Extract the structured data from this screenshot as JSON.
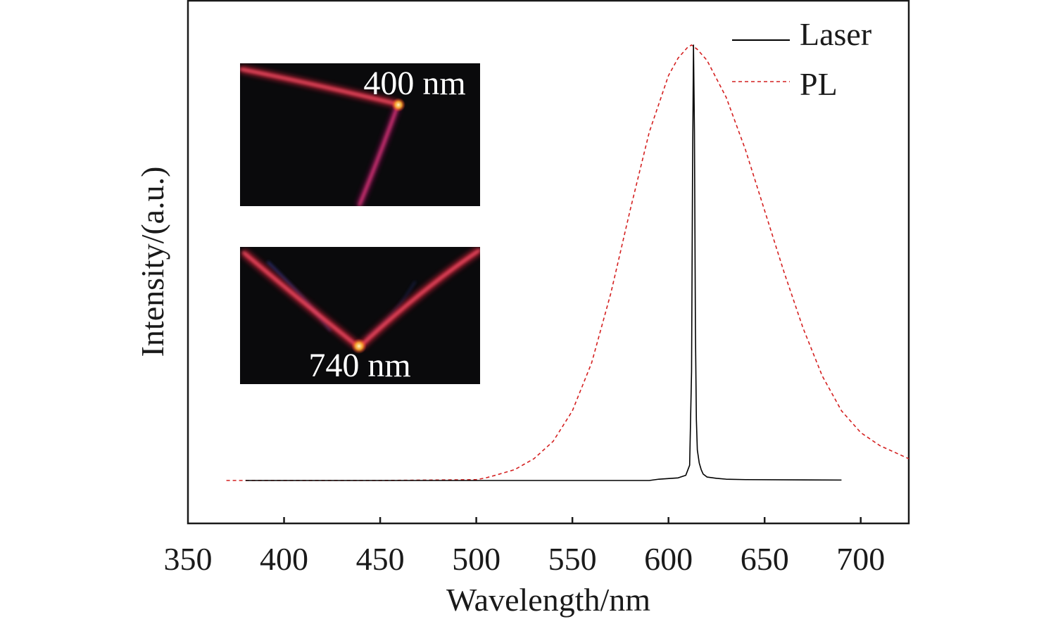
{
  "chart_data": {
    "type": "line",
    "title": "",
    "xlabel": "Wavelength/nm",
    "ylabel": "Intensity/(a.u.)",
    "xlim": [
      350,
      725
    ],
    "ylim": [
      0,
      1.1
    ],
    "xticks": [
      350,
      400,
      450,
      500,
      550,
      600,
      650,
      700
    ],
    "yticks_shown": false,
    "legend": {
      "position": "top-right",
      "entries": [
        {
          "label": "Laser",
          "style": "solid",
          "color": "#000000"
        },
        {
          "label": "PL",
          "style": "dashed",
          "color": "#d42020"
        }
      ]
    },
    "series": [
      {
        "name": "Laser",
        "color": "#000000",
        "style": "solid",
        "x": [
          380,
          500,
          590,
          595,
          605,
          609,
          611,
          612,
          612.5,
          613,
          613.5,
          614,
          614.5,
          615,
          616,
          617,
          618,
          620,
          625,
          630,
          640,
          690
        ],
        "y": [
          0,
          0,
          0,
          0.003,
          0.006,
          0.012,
          0.035,
          0.25,
          0.7,
          1.0,
          0.8,
          0.35,
          0.14,
          0.07,
          0.04,
          0.025,
          0.015,
          0.008,
          0.005,
          0.003,
          0.002,
          0.001
        ]
      },
      {
        "name": "PL",
        "color": "#d42020",
        "style": "dashed",
        "x": [
          370,
          380,
          400,
          450,
          500,
          505,
          510,
          520,
          530,
          540,
          550,
          560,
          570,
          580,
          590,
          600,
          605,
          610,
          612,
          615,
          620,
          630,
          640,
          650,
          660,
          670,
          680,
          690,
          700,
          710,
          720,
          725
        ],
        "y": [
          0,
          0,
          0,
          0,
          0.002,
          0.006,
          0.012,
          0.025,
          0.05,
          0.09,
          0.16,
          0.27,
          0.43,
          0.62,
          0.8,
          0.93,
          0.97,
          0.995,
          1.0,
          0.99,
          0.965,
          0.88,
          0.76,
          0.62,
          0.48,
          0.35,
          0.24,
          0.16,
          0.11,
          0.08,
          0.06,
          0.05
        ]
      }
    ],
    "annotations": [
      {
        "type": "inset-photo",
        "label": "400 nm",
        "description": "red lasing nanowire under excitation with bright emission spot"
      },
      {
        "type": "inset-photo",
        "label": "740 nm",
        "description": "V-shaped red lasing nanowire with bright emission spot at vertex"
      }
    ]
  },
  "colors": {
    "axis": "#1a1a1a",
    "laser": "#000000",
    "pl": "#d42020",
    "inset_background": "#0a0a0c",
    "inset_wire": "#e0203a"
  }
}
